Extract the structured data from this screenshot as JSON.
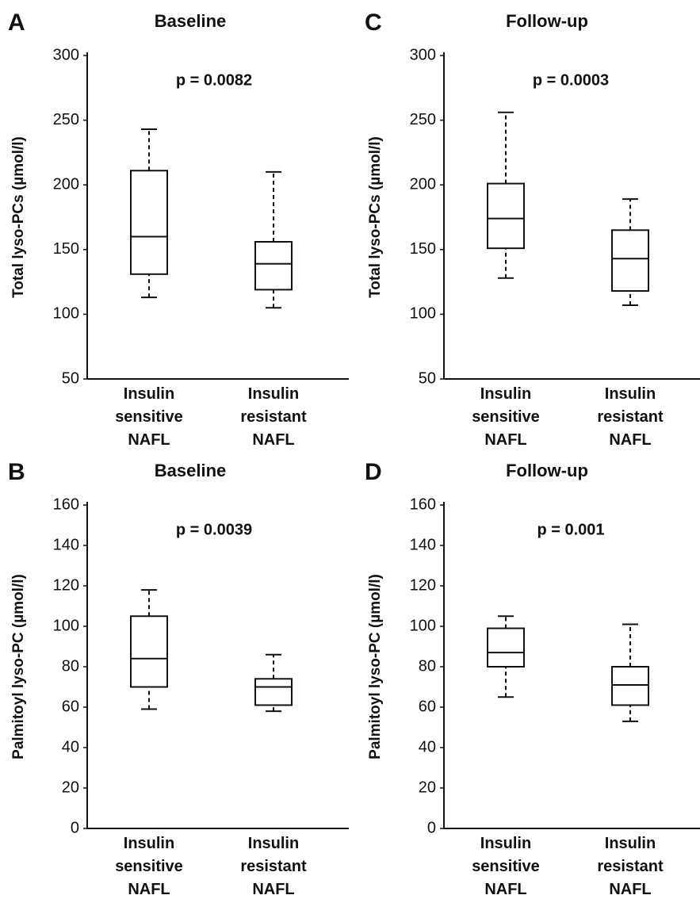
{
  "chart_data": [
    {
      "type": "box",
      "panel": "A",
      "title": "Baseline",
      "ylabel": "Total lyso-PCs (µmol/l)",
      "annotation": "p = 0.0082",
      "categories": [
        "Insulin sensitive NAFL",
        "Insulin resistant NAFL"
      ],
      "color": "#111111",
      "boxes": [
        {
          "min": 113,
          "q1": 131,
          "median": 160,
          "q3": 211,
          "max": 243
        },
        {
          "min": 105,
          "q1": 119,
          "median": 139,
          "q3": 156,
          "max": 210
        }
      ],
      "ylim": [
        50,
        300
      ],
      "yticks": [
        50,
        100,
        150,
        200,
        250,
        300
      ]
    },
    {
      "type": "box",
      "panel": "B",
      "title": "Baseline",
      "ylabel": "Palmitoyl lyso-PC (µmol/l)",
      "annotation": "p = 0.0039",
      "categories": [
        "Insulin sensitive NAFL",
        "Insulin resistant NAFL"
      ],
      "color": "#111111",
      "boxes": [
        {
          "min": 59,
          "q1": 70,
          "median": 84,
          "q3": 105,
          "max": 118
        },
        {
          "min": 58,
          "q1": 61,
          "median": 70,
          "q3": 74,
          "max": 86
        }
      ],
      "ylim": [
        0,
        160
      ],
      "yticks": [
        0,
        20,
        40,
        60,
        80,
        100,
        120,
        140,
        160
      ]
    },
    {
      "type": "box",
      "panel": "C",
      "title": "Follow-up",
      "ylabel": "Total lyso-PCs (µmol/l)",
      "annotation": "p = 0.0003",
      "categories": [
        "Insulin sensitive NAFL",
        "Insulin resistant NAFL"
      ],
      "color": "#111111",
      "boxes": [
        {
          "min": 128,
          "q1": 151,
          "median": 174,
          "q3": 201,
          "max": 256
        },
        {
          "min": 107,
          "q1": 118,
          "median": 143,
          "q3": 165,
          "max": 189
        }
      ],
      "ylim": [
        50,
        300
      ],
      "yticks": [
        50,
        100,
        150,
        200,
        250,
        300
      ]
    },
    {
      "type": "box",
      "panel": "D",
      "title": "Follow-up",
      "ylabel": "Palmitoyl lyso-PC (µmol/l)",
      "annotation": "p = 0.001",
      "categories": [
        "Insulin sensitive NAFL",
        "Insulin resistant NAFL"
      ],
      "color": "#111111",
      "boxes": [
        {
          "min": 65,
          "q1": 80,
          "median": 87,
          "q3": 99,
          "max": 105
        },
        {
          "min": 53,
          "q1": 61,
          "median": 71,
          "q3": 80,
          "max": 101
        }
      ],
      "ylim": [
        0,
        160
      ],
      "yticks": [
        0,
        20,
        40,
        60,
        80,
        100,
        120,
        140,
        160
      ]
    }
  ]
}
